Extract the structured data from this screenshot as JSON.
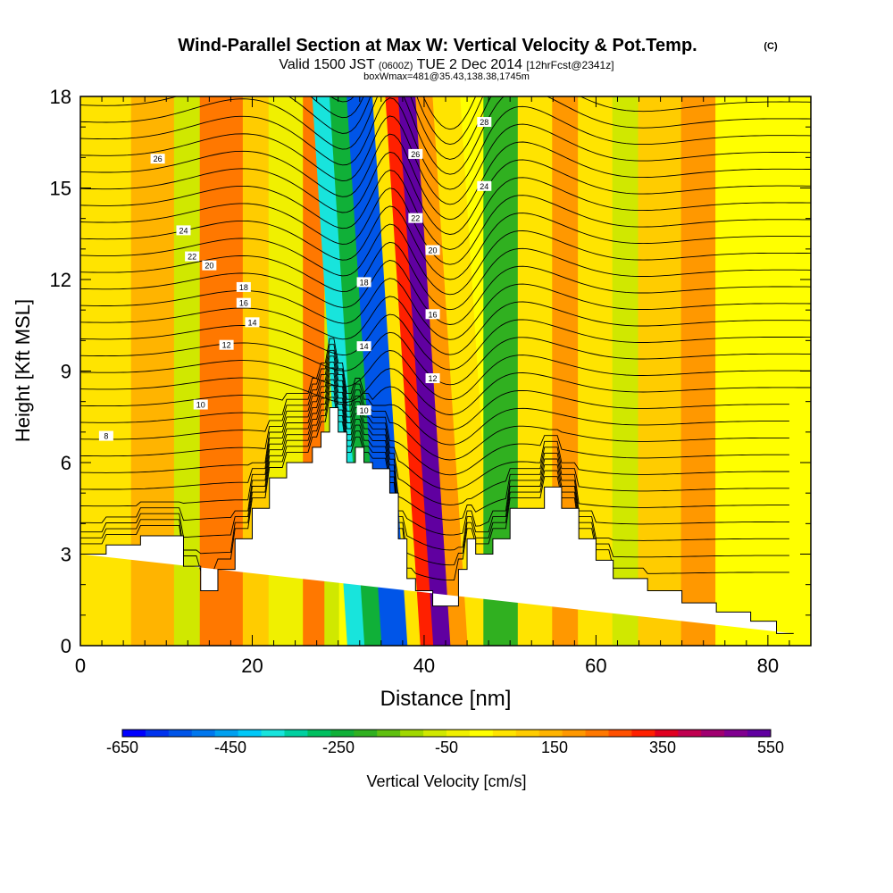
{
  "chart_data": {
    "type": "heatmap",
    "title": "Wind-Parallel Section at Max W: Vertical Velocity & Pot.Temp.",
    "title_mark": "(C)",
    "subtitle": {
      "valid_prefix": "Valid 1500 JST",
      "utc": "(0600Z)",
      "date": "TUE 2 Dec 2014",
      "forecast": "[12hrFcst@2341z]"
    },
    "box_label": "boxWmax=481@35.43,138.38,1745m",
    "xlabel": "Distance [nm]",
    "ylabel": "Height [Kft MSL]",
    "xlim": [
      0,
      85
    ],
    "ylim": [
      0,
      18
    ],
    "x_ticks": [
      0,
      20,
      40,
      60,
      80
    ],
    "y_ticks": [
      0,
      3,
      6,
      9,
      12,
      15,
      18
    ],
    "colorbar": {
      "label": "Vertical Velocity [cm/s]",
      "min": -650,
      "max": 550,
      "step": 50,
      "tick_labels": [
        "-650",
        "-450",
        "-250",
        "-50",
        "150",
        "350",
        "550"
      ],
      "colors": [
        "#0000ff",
        "#0033ee",
        "#0055e8",
        "#0077ee",
        "#00a0f0",
        "#00c8f8",
        "#18e4dc",
        "#00d0a0",
        "#00c060",
        "#10b038",
        "#30b020",
        "#60c010",
        "#a0d800",
        "#d0e800",
        "#f0f000",
        "#ffff00",
        "#ffe400",
        "#ffcc00",
        "#ffb400",
        "#ff9800",
        "#ff7800",
        "#ff5000",
        "#ff2000",
        "#e00020",
        "#c00050",
        "#a00070",
        "#800090",
        "#6000a0"
      ]
    },
    "velocity_cells": [
      {
        "x": [
          0,
          6
        ],
        "w": 40
      },
      {
        "x": [
          6,
          11
        ],
        "w": 150
      },
      {
        "x": [
          11,
          14
        ],
        "w": -60
      },
      {
        "x": [
          14,
          19
        ],
        "w": 230
      },
      {
        "x": [
          19,
          22
        ],
        "w": 100
      },
      {
        "x": [
          22,
          26
        ],
        "w": -40
      },
      {
        "x": [
          26,
          28.5
        ],
        "w": 220
      },
      {
        "x": [
          28.5,
          30
        ],
        "w": -60
      },
      {
        "x": [
          30,
          32
        ],
        "w": -380
      },
      {
        "x": [
          32,
          34
        ],
        "w": -230
      },
      {
        "x": [
          34,
          37
        ],
        "w": -560
      },
      {
        "x": [
          37,
          38.5
        ],
        "w": 40
      },
      {
        "x": [
          38.5,
          40
        ],
        "w": 320
      },
      {
        "x": [
          40,
          42
        ],
        "w": 520
      },
      {
        "x": [
          42,
          44
        ],
        "w": 200
      },
      {
        "x": [
          44,
          47
        ],
        "w": 60
      },
      {
        "x": [
          47,
          51
        ],
        "w": -220
      },
      {
        "x": [
          51,
          55
        ],
        "w": 60
      },
      {
        "x": [
          55,
          58
        ],
        "w": 200
      },
      {
        "x": [
          58,
          62
        ],
        "w": 60
      },
      {
        "x": [
          62,
          65
        ],
        "w": -60
      },
      {
        "x": [
          65,
          70
        ],
        "w": 90
      },
      {
        "x": [
          70,
          74
        ],
        "w": 180
      },
      {
        "x": [
          74,
          85
        ],
        "w": 20
      }
    ],
    "terrain": {
      "x": [
        0,
        3,
        3,
        7,
        7,
        12,
        12,
        14,
        14,
        16,
        16,
        18,
        18,
        20,
        20,
        22,
        22,
        24,
        24,
        27,
        27,
        28,
        28,
        29,
        29,
        30,
        30,
        31,
        31,
        32,
        32,
        33,
        33,
        34,
        34,
        36,
        36,
        37,
        37,
        38,
        38,
        39,
        39,
        41,
        41,
        44,
        44,
        45,
        45,
        46,
        46,
        48,
        48,
        50,
        50,
        54,
        54,
        56,
        56,
        58,
        58,
        60,
        60,
        62,
        62,
        66,
        66,
        70,
        70,
        74,
        74,
        78,
        78,
        81,
        81,
        83,
        83,
        85
      ],
      "y": [
        3,
        3,
        3.3,
        3.3,
        3.6,
        3.6,
        2.6,
        2.6,
        1.8,
        1.8,
        2.5,
        2.5,
        3.5,
        3.5,
        4.5,
        4.5,
        5.5,
        5.5,
        6,
        6,
        6.5,
        6.5,
        7,
        7,
        7.8,
        7.8,
        7,
        7,
        6,
        6,
        6.5,
        6.5,
        6,
        6,
        5.8,
        5.8,
        5,
        5,
        3.5,
        3.5,
        2.2,
        2.2,
        1.8,
        1.8,
        1.3,
        1.3,
        2.5,
        2.5,
        3.5,
        3.5,
        3,
        3,
        3.5,
        3.5,
        4.5,
        4.5,
        5.2,
        5.2,
        4.5,
        4.5,
        3.5,
        3.5,
        2.8,
        2.8,
        2.2,
        2.2,
        1.8,
        1.8,
        1.4,
        1.4,
        1.1,
        1.1,
        0.8,
        0.8,
        0.4,
        0.4
      ]
    },
    "isentropes": [
      {
        "label": "8",
        "base": 6.9,
        "label_x": 3
      },
      {
        "label": "10",
        "base": 7.7,
        "label_x": 14
      },
      {
        "label": "12",
        "base": 9.5,
        "label_x": 17
      },
      {
        "label": "14",
        "base": 10.2,
        "label_x": 20
      },
      {
        "label": "16",
        "base": 10.8,
        "label_x": 19
      },
      {
        "label": "18",
        "base": 11.3,
        "label_x": 19
      },
      {
        "label": "20",
        "base": 12.1,
        "label_x": 15
      },
      {
        "label": "22",
        "base": 12.5,
        "label_x": 13
      },
      {
        "label": "24",
        "base": 13.4,
        "label_x": 12
      },
      {
        "label": "26",
        "base": 15.9,
        "label_x": 9
      }
    ],
    "isentrope_label_extra": [
      "10",
      "12",
      "14",
      "16",
      "18",
      "20",
      "22",
      "24",
      "26",
      "28"
    ],
    "grid": false,
    "legend": "bottom"
  }
}
